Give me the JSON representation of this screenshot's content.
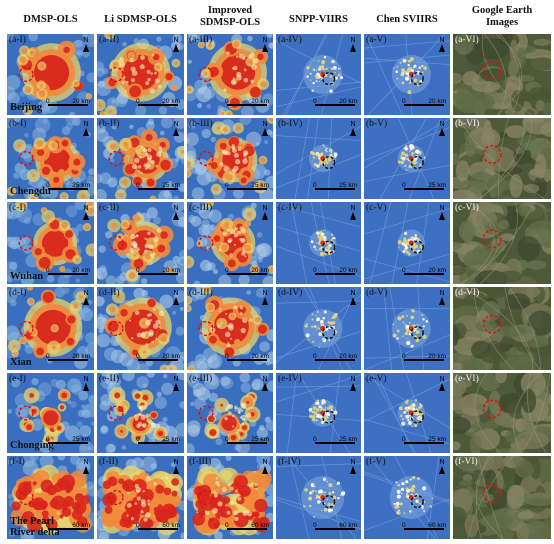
{
  "columns": [
    {
      "id": "I",
      "header": "DMSP-OLS"
    },
    {
      "id": "II",
      "header": "Li SDMSP-OLS"
    },
    {
      "id": "III",
      "header": "Improved\nSDMSP-OLS"
    },
    {
      "id": "IV",
      "header": "SNPP-VIIRS"
    },
    {
      "id": "V",
      "header": "Chen SVIIRS"
    },
    {
      "id": "VI",
      "header": "Google Earth\nImages"
    }
  ],
  "rows": [
    {
      "letter": "a",
      "city": "Beijing",
      "scale": "20 km",
      "style": "big"
    },
    {
      "letter": "b",
      "city": "Chengdu",
      "scale": "25 km",
      "style": "star"
    },
    {
      "letter": "c",
      "city": "Wuhan",
      "scale": "20 km",
      "style": "blob"
    },
    {
      "letter": "d",
      "city": "Xian",
      "scale": "20 km",
      "style": "big"
    },
    {
      "letter": "e",
      "city": "Chonging",
      "scale": "25 km",
      "style": "scatter"
    },
    {
      "letter": "f",
      "city": "The Pearl\nRiver delta",
      "scale": "60 km",
      "style": "delta"
    }
  ],
  "north_label": "N",
  "scale_zero": "0",
  "colors": {
    "water_blue": "#3a6fbf",
    "light_blue": "#8fb8df",
    "yellow": "#e8d36a",
    "orange": "#f08a3c",
    "red": "#d8261c",
    "circle_red": "#e01010",
    "circle_black": "#111111"
  }
}
